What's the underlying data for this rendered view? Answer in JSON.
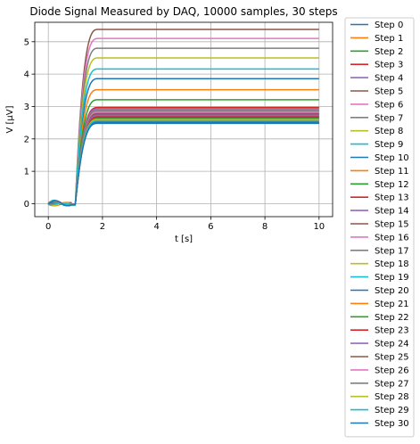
{
  "chart_data": {
    "type": "line",
    "title": "Diode Signal Measured by DAQ,  10000 samples, 30 steps",
    "xlabel": "t  [s]",
    "ylabel": "V  [μV]",
    "xlim": [
      -0.5,
      10.5
    ],
    "ylim": [
      -0.4,
      5.6
    ],
    "xticks": [
      0,
      2,
      4,
      6,
      8,
      10
    ],
    "yticks": [
      0,
      1,
      2,
      3,
      4,
      5
    ],
    "grid": true,
    "legend_position": "outside-right",
    "x_shape": {
      "t": [
        0,
        0.1,
        0.2,
        0.3,
        0.4,
        0.5,
        0.6,
        0.7,
        0.8,
        0.9,
        1.0,
        1.1,
        1.2,
        1.3,
        1.4,
        1.5,
        1.6,
        1.7,
        1.8,
        1.9,
        2.0,
        2.2,
        2.5,
        3.0,
        10.0
      ],
      "note": "series values listed on this shared time axis"
    },
    "series": [
      {
        "name": "Step 0",
        "color": "#1f77b4",
        "plateau": 2.5
      },
      {
        "name": "Step 1",
        "color": "#ff7f0e",
        "plateau": 2.55
      },
      {
        "name": "Step 2",
        "color": "#2ca02c",
        "plateau": 2.6
      },
      {
        "name": "Step 3",
        "color": "#d62728",
        "plateau": 2.65
      },
      {
        "name": "Step 4",
        "color": "#9467bd",
        "plateau": 2.7
      },
      {
        "name": "Step 5",
        "color": "#8c564b",
        "plateau": 2.75
      },
      {
        "name": "Step 6",
        "color": "#e377c2",
        "plateau": 2.8
      },
      {
        "name": "Step 7",
        "color": "#7f7f7f",
        "plateau": 2.85
      },
      {
        "name": "Step 8",
        "color": "#bcbd22",
        "plateau": 2.9
      },
      {
        "name": "Step 9",
        "color": "#17becf",
        "plateau": 2.95
      },
      {
        "name": "Step 10",
        "color": "#1f77b4",
        "plateau": 3.86
      },
      {
        "name": "Step 11",
        "color": "#ff7f0e",
        "plateau": 3.52
      },
      {
        "name": "Step 12",
        "color": "#2ca02c",
        "plateau": 3.21
      },
      {
        "name": "Step 13",
        "color": "#d62728",
        "plateau": 2.97
      },
      {
        "name": "Step 14",
        "color": "#9467bd",
        "plateau": 2.93
      },
      {
        "name": "Step 15",
        "color": "#8c564b",
        "plateau": 5.38
      },
      {
        "name": "Step 16",
        "color": "#e377c2",
        "plateau": 5.1
      },
      {
        "name": "Step 17",
        "color": "#7f7f7f",
        "plateau": 4.8
      },
      {
        "name": "Step 18",
        "color": "#bcbd22",
        "plateau": 4.5
      },
      {
        "name": "Step 19",
        "color": "#17becf",
        "plateau": 4.16
      },
      {
        "name": "Step 20",
        "color": "#1f77b4",
        "plateau": 2.52
      },
      {
        "name": "Step 21",
        "color": "#ff7f0e",
        "plateau": 2.58
      },
      {
        "name": "Step 22",
        "color": "#2ca02c",
        "plateau": 2.63
      },
      {
        "name": "Step 23",
        "color": "#d62728",
        "plateau": 2.68
      },
      {
        "name": "Step 24",
        "color": "#9467bd",
        "plateau": 2.73
      },
      {
        "name": "Step 25",
        "color": "#8c564b",
        "plateau": 2.78
      },
      {
        "name": "Step 26",
        "color": "#e377c2",
        "plateau": 2.83
      },
      {
        "name": "Step 27",
        "color": "#7f7f7f",
        "plateau": 2.88
      },
      {
        "name": "Step 28",
        "color": "#bcbd22",
        "plateau": 2.6
      },
      {
        "name": "Step 29",
        "color": "#17becf",
        "plateau": 2.56
      },
      {
        "name": "Step 30",
        "color": "#1f77b4",
        "plateau": 2.48
      }
    ]
  }
}
